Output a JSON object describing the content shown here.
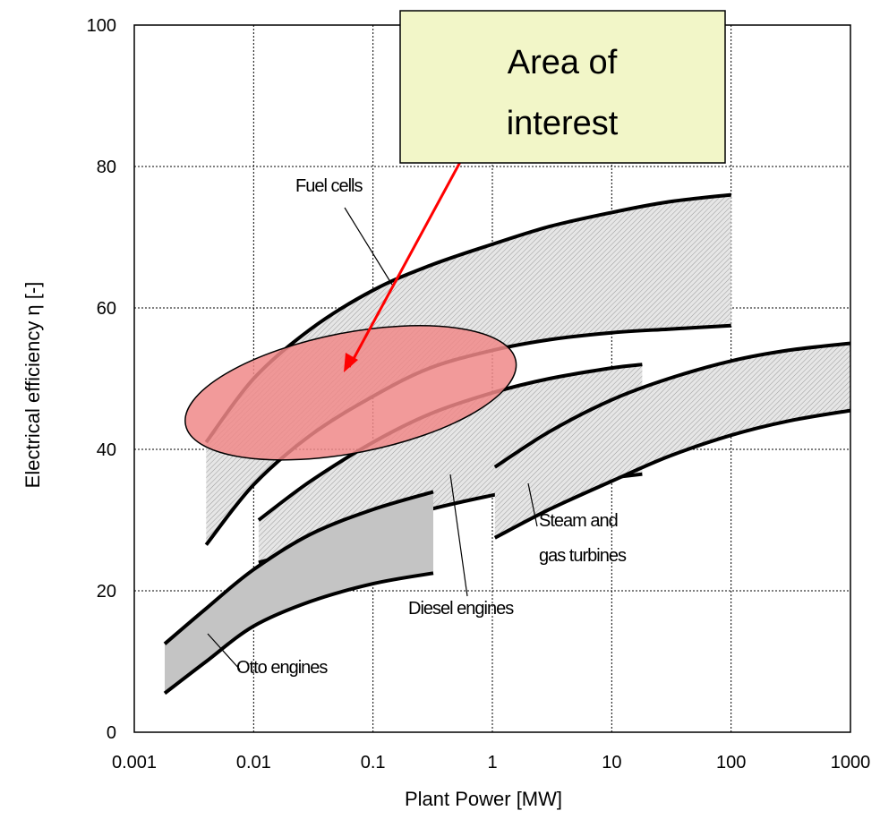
{
  "chart_data": {
    "type": "area",
    "xlabel": "Plant Power   [MW]",
    "ylabel": "Electrical efficiency η [-]",
    "x_scale": "log",
    "xlim": [
      0.001,
      1000
    ],
    "ylim": [
      0,
      100
    ],
    "x_ticks": [
      "0.001",
      "0.01",
      "0.1",
      "1",
      "10",
      "100",
      "1000"
    ],
    "y_ticks": [
      "0",
      "20",
      "40",
      "60",
      "80",
      "100"
    ],
    "grid": true,
    "series": [
      {
        "name": "Fuel cells",
        "x": [
          0.004,
          0.01,
          0.03,
          0.1,
          0.3,
          1,
          3,
          10,
          30,
          100
        ],
        "upper": [
          41,
          50,
          57,
          62.5,
          66,
          69,
          71.5,
          73.5,
          75,
          76
        ],
        "lower": [
          26.5,
          35,
          42,
          47.5,
          51.5,
          54,
          55.5,
          56.5,
          57,
          57.5
        ],
        "fill": "#d8d8d8"
      },
      {
        "name": "Diesel engines",
        "x": [
          0.011,
          0.03,
          0.1,
          0.3,
          1,
          3,
          10,
          18
        ],
        "upper": [
          30,
          35.5,
          41,
          45,
          48,
          50,
          51.5,
          52
        ],
        "lower": [
          24,
          26,
          29,
          31.5,
          33.5,
          35,
          36,
          36.5
        ],
        "fill": "#d8d8d8"
      },
      {
        "name": "Steam and gas turbines",
        "x": [
          1.05,
          3,
          10,
          30,
          100,
          300,
          1000
        ],
        "upper": [
          37.5,
          42.5,
          47,
          50,
          52.5,
          54,
          55
        ],
        "lower": [
          27.5,
          31.5,
          35.5,
          39,
          42,
          44,
          45.5
        ],
        "fill": "#d8d8d8"
      },
      {
        "name": "Otto engines",
        "x": [
          0.0018,
          0.004,
          0.01,
          0.03,
          0.1,
          0.32
        ],
        "upper": [
          12.5,
          17.5,
          23,
          28,
          31.5,
          34
        ],
        "lower": [
          5.5,
          10,
          15,
          18.5,
          21,
          22.5
        ],
        "fill": "#c4c4c4"
      }
    ],
    "labels": {
      "fuel_cells": "Fuel cells",
      "diesel": "Diesel engines",
      "steam_line1": "Steam and",
      "steam_line2": "gas turbines",
      "otto": "Otto engines"
    },
    "highlight": {
      "label_line1": "Area of",
      "label_line2": "interest",
      "center_x": 0.065,
      "center_y": 48,
      "x_span": [
        0.0038,
        2.5
      ],
      "y_halfheight": 8.5,
      "tilt_deg": -11,
      "fill": "#f08888",
      "arrow_color": "#ff0000",
      "box_fill": "#f2f6c8"
    }
  }
}
